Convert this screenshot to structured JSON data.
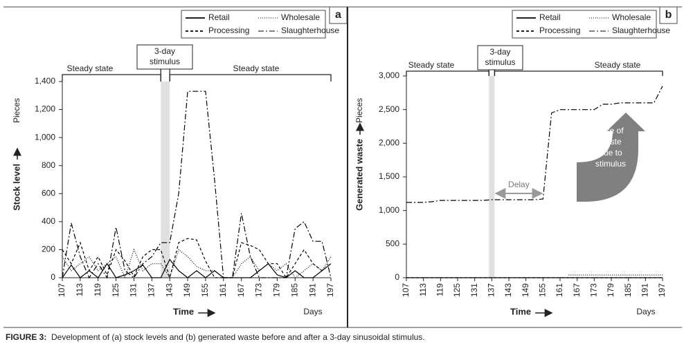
{
  "caption_label": "FIGURE 3:",
  "caption": "Development of (a) stock levels and (b) generated waste before and after a 3-day sinusoidal stimulus.",
  "chart_data": [
    {
      "type": "line",
      "panel": "a",
      "xlabel": "Time",
      "x_unit": "Days",
      "ylabel": "Stock level",
      "y_unit": "Pieces",
      "legend": "upper right",
      "steady_state_left": "Steady state",
      "steady_state_right": "Steady state",
      "stimulus_label": [
        "3-day",
        "stimulus"
      ],
      "stimulus": [
        140,
        143
      ],
      "xlim": [
        107,
        197
      ],
      "xticks": [
        107,
        113,
        119,
        125,
        131,
        137,
        143,
        149,
        155,
        161,
        167,
        173,
        179,
        185,
        191,
        197
      ],
      "ylim": [
        0,
        1400
      ],
      "yticks": [
        0,
        200,
        400,
        600,
        800,
        {
          "value": 1000,
          "label": "1,000"
        },
        {
          "value": 1200,
          "label": "1,200"
        },
        {
          "value": 1400,
          "label": "1,400"
        }
      ],
      "x": [
        107,
        110,
        113,
        116,
        119,
        122,
        125,
        128,
        131,
        134,
        137,
        140,
        143,
        146,
        149,
        152,
        155,
        158,
        161,
        164,
        167,
        170,
        173,
        176,
        179,
        182,
        185,
        188,
        191,
        194,
        197
      ],
      "series": [
        {
          "name": "Retail",
          "color": "#000000",
          "style": "solid",
          "values": [
            0,
            90,
            0,
            50,
            0,
            100,
            0,
            20,
            50,
            90,
            0,
            0,
            130,
            50,
            0,
            50,
            0,
            50,
            0,
            0,
            0,
            0,
            50,
            100,
            20,
            0,
            50,
            0,
            0,
            50,
            100
          ]
        },
        {
          "name": "Wholesale",
          "color": "#000000",
          "style": "dotted",
          "values": [
            150,
            50,
            100,
            150,
            50,
            100,
            150,
            0,
            200,
            50,
            100,
            100,
            0,
            200,
            150,
            80,
            50,
            50,
            0,
            0,
            100,
            150,
            50,
            100,
            50,
            100,
            0,
            50,
            100,
            50,
            150
          ]
        },
        {
          "name": "Processing",
          "color": "#000000",
          "style": "dashed",
          "values": [
            200,
            100,
            250,
            50,
            150,
            20,
            200,
            120,
            10,
            150,
            200,
            200,
            0,
            250,
            280,
            270,
            120,
            0,
            0,
            0,
            250,
            230,
            200,
            100,
            100,
            0,
            100,
            200,
            100,
            50,
            100
          ]
        },
        {
          "name": "Slaughterhouse",
          "color": "#000000",
          "style": "dashdot",
          "values": [
            0,
            390,
            150,
            0,
            100,
            0,
            360,
            50,
            0,
            100,
            150,
            250,
            250,
            600,
            1330,
            1330,
            1330,
            700,
            0,
            0,
            460,
            150,
            0,
            0,
            0,
            0,
            350,
            400,
            260,
            260,
            0
          ]
        }
      ]
    },
    {
      "type": "line",
      "panel": "b",
      "xlabel": "Time",
      "x_unit": "Days",
      "ylabel": "Generated waste",
      "y_unit": "Pieces",
      "legend": "upper right",
      "steady_state_left": "Steady state",
      "steady_state_right": "Steady state",
      "stimulus_label": [
        "3-day",
        "stimulus"
      ],
      "stimulus": [
        136,
        138
      ],
      "delay_label": "Delay",
      "delay": [
        138,
        155
      ],
      "rise_label": [
        "Rise of",
        "waste",
        "due to",
        "stimulus"
      ],
      "xlim": [
        107,
        197
      ],
      "xticks": [
        107,
        113,
        119,
        125,
        131,
        137,
        143,
        149,
        155,
        161,
        167,
        173,
        179,
        185,
        191,
        197
      ],
      "ylim": [
        0,
        3000
      ],
      "yticks": [
        0,
        500,
        {
          "value": 1000,
          "label": "1,000"
        },
        {
          "value": 1500,
          "label": "1,500"
        },
        {
          "value": 2000,
          "label": "2,000"
        },
        {
          "value": 2500,
          "label": "2,500"
        },
        {
          "value": 3000,
          "label": "3,000"
        }
      ],
      "x": [
        107,
        110,
        113,
        116,
        119,
        122,
        125,
        128,
        131,
        134,
        137,
        140,
        143,
        146,
        149,
        152,
        155,
        158,
        161,
        164,
        167,
        170,
        173,
        176,
        179,
        182,
        185,
        188,
        191,
        194,
        197
      ],
      "series": [
        {
          "name": "Retail",
          "color": "#000000",
          "style": "solid",
          "values": [
            0,
            0,
            0,
            0,
            0,
            0,
            0,
            0,
            0,
            0,
            0,
            0,
            0,
            0,
            0,
            0,
            0,
            0,
            0,
            0,
            0,
            0,
            0,
            0,
            0,
            0,
            0,
            0,
            0,
            0,
            0
          ]
        },
        {
          "name": "Wholesale",
          "color": "#000000",
          "style": "dotted",
          "values": [
            null,
            null,
            null,
            null,
            null,
            null,
            null,
            null,
            null,
            null,
            null,
            null,
            null,
            null,
            null,
            null,
            null,
            null,
            null,
            40,
            40,
            40,
            40,
            40,
            40,
            40,
            40,
            40,
            40,
            40,
            40
          ]
        },
        {
          "name": "Processing",
          "color": "#000000",
          "style": "dashed",
          "values": [
            0,
            0,
            0,
            0,
            0,
            0,
            0,
            0,
            0,
            0,
            0,
            0,
            0,
            0,
            0,
            0,
            0,
            0,
            0,
            0,
            0,
            0,
            0,
            0,
            0,
            0,
            0,
            0,
            0,
            0,
            0
          ]
        },
        {
          "name": "Slaughterhouse",
          "color": "#000000",
          "style": "dashdot",
          "values": [
            1120,
            1120,
            1120,
            1130,
            1150,
            1150,
            1150,
            1150,
            1150,
            1150,
            1160,
            1160,
            1160,
            1160,
            1160,
            1160,
            1170,
            2450,
            2500,
            2500,
            2500,
            2500,
            2500,
            2580,
            2580,
            2600,
            2600,
            2600,
            2600,
            2600,
            2850
          ]
        }
      ]
    }
  ]
}
